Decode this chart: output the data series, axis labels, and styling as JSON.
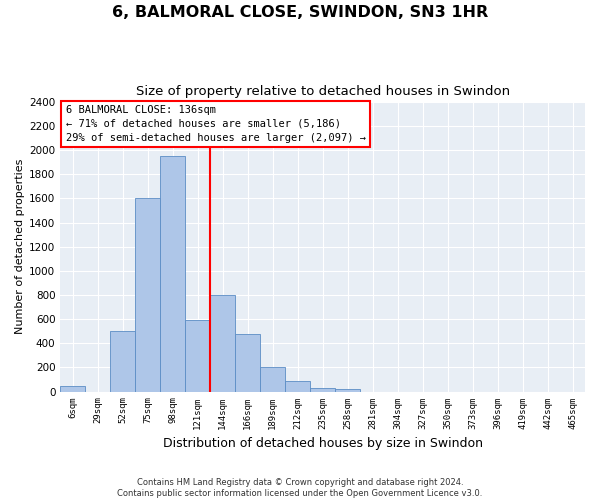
{
  "title": "6, BALMORAL CLOSE, SWINDON, SN3 1HR",
  "subtitle": "Size of property relative to detached houses in Swindon",
  "xlabel": "Distribution of detached houses by size in Swindon",
  "ylabel": "Number of detached properties",
  "categories": [
    "6sqm",
    "29sqm",
    "52sqm",
    "75sqm",
    "98sqm",
    "121sqm",
    "144sqm",
    "166sqm",
    "189sqm",
    "212sqm",
    "235sqm",
    "258sqm",
    "281sqm",
    "304sqm",
    "327sqm",
    "350sqm",
    "373sqm",
    "396sqm",
    "419sqm",
    "442sqm",
    "465sqm"
  ],
  "values": [
    50,
    0,
    500,
    1600,
    1950,
    590,
    800,
    480,
    200,
    90,
    30,
    20,
    0,
    0,
    0,
    0,
    0,
    0,
    0,
    0,
    0
  ],
  "bar_color": "#aec6e8",
  "bar_edge_color": "#5b8dc5",
  "vline_color": "red",
  "vline_pos": 5.5,
  "annotation_text": "6 BALMORAL CLOSE: 136sqm\n← 71% of detached houses are smaller (5,186)\n29% of semi-detached houses are larger (2,097) →",
  "ylim_max": 2400,
  "yticks": [
    0,
    200,
    400,
    600,
    800,
    1000,
    1200,
    1400,
    1600,
    1800,
    2000,
    2200,
    2400
  ],
  "background_color": "#e8eef5",
  "footer_line1": "Contains HM Land Registry data © Crown copyright and database right 2024.",
  "footer_line2": "Contains public sector information licensed under the Open Government Licence v3.0."
}
